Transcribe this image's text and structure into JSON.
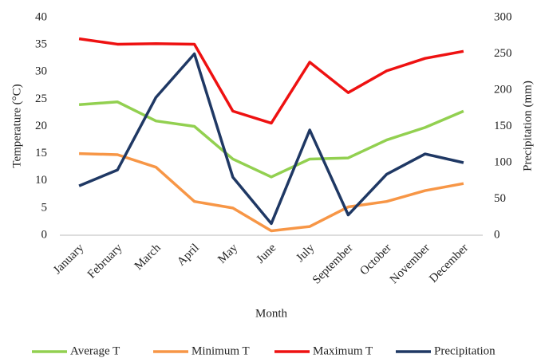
{
  "chart_data": {
    "type": "line",
    "categories": [
      "January",
      "February",
      "March",
      "April",
      "May",
      "June",
      "July",
      "September",
      "October",
      "November",
      "December"
    ],
    "series": [
      {
        "name": "Average T",
        "color": "#92d050",
        "values": [
          24,
          24.5,
          21,
          20,
          14,
          10.7,
          14,
          14.2,
          17.5,
          19.8,
          22.8
        ]
      },
      {
        "name": "Minimum T",
        "color": "#f79646",
        "values": [
          15,
          14.8,
          12.5,
          6.2,
          5,
          0.8,
          1.6,
          5.2,
          6.2,
          8.2,
          9.5
        ]
      },
      {
        "name": "Maximum T",
        "color": "#ee1111",
        "values": [
          36.1,
          35.1,
          35.2,
          35.1,
          22.8,
          20.6,
          31.8,
          26.2,
          30.2,
          32.5,
          33.8
        ]
      },
      {
        "name": "Precipitation",
        "color": "#1f3864",
        "axis": "y2",
        "values": [
          68,
          90,
          190,
          250,
          80,
          16,
          145,
          28,
          84,
          112,
          100
        ]
      }
    ],
    "xlabel": "Month",
    "ylabel": "Temperature (°C)",
    "y2label": "Precipitation (mm)",
    "ylim": [
      0,
      40
    ],
    "yticks": [
      0,
      5,
      10,
      15,
      20,
      25,
      30,
      35,
      40
    ],
    "y2lim": [
      0,
      300
    ],
    "y2ticks": [
      0,
      50,
      100,
      150,
      200,
      250,
      300
    ],
    "grid": false,
    "legend": "bottom"
  }
}
